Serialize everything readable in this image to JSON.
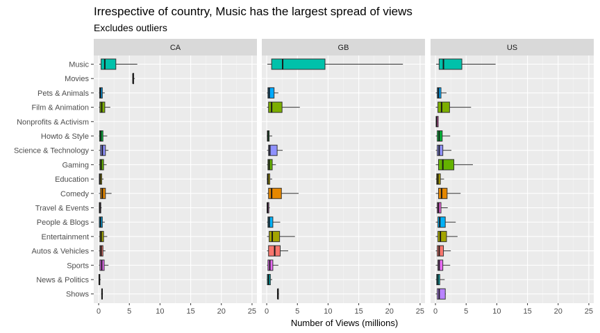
{
  "chart_data": {
    "type": "boxplot",
    "title": "Irrespective of country, Music has the largest spread of views",
    "subtitle": "Excludes outliers",
    "xlabel": "Number of Views (millions)",
    "ylabel": "",
    "xlim": [
      -0.8,
      25.8
    ],
    "x_ticks": [
      0,
      5,
      10,
      15,
      20,
      25
    ],
    "grid": true,
    "legend": "none",
    "categories": [
      "Music",
      "Movies",
      "Pets & Animals",
      "Film & Animation",
      "Nonprofits & Activism",
      "Howto & Style",
      "Science & Technology",
      "Gaming",
      "Education",
      "Comedy",
      "Travel & Events",
      "People & Blogs",
      "Entertainment",
      "Autos & Vehicles",
      "Sports",
      "News & Politics",
      "Shows"
    ],
    "colors": {
      "Music": "#00C1AA",
      "Movies": "#00BD5C",
      "Pets & Animals": "#00A9FF",
      "Film & Animation": "#7CAE00",
      "Nonprofits & Activism": "#FF61CC",
      "Howto & Style": "#00BA38",
      "Science & Technology": "#8F91FF",
      "Gaming": "#64B200",
      "Education": "#AEA200",
      "Comedy": "#E58700",
      "Travel & Events": "#F564E3",
      "People & Blogs": "#00B0F6",
      "Entertainment": "#A3A500",
      "Autos & Vehicles": "#F8766D",
      "Sports": "#E76BF3",
      "News & Politics": "#00BFC4",
      "Shows": "#B983FF"
    },
    "facets": [
      {
        "name": "CA",
        "boxes": [
          {
            "category": "Music",
            "min": 0.1,
            "q1": 0.4,
            "median": 1.0,
            "q3": 2.8,
            "max": 6.3
          },
          {
            "category": "Movies",
            "min": 5.6,
            "q1": 5.6,
            "median": 5.6,
            "q3": 5.6,
            "max": 5.9
          },
          {
            "category": "Pets & Animals",
            "min": 0.05,
            "q1": 0.15,
            "median": 0.3,
            "q3": 0.6,
            "max": 1.0
          },
          {
            "category": "Film & Animation",
            "min": 0.05,
            "q1": 0.2,
            "median": 0.5,
            "q3": 1.0,
            "max": 1.9
          },
          {
            "category": "Howto & Style",
            "min": 0.05,
            "q1": 0.15,
            "median": 0.35,
            "q3": 0.7,
            "max": 1.4
          },
          {
            "category": "Science & Technology",
            "min": 0.05,
            "q1": 0.3,
            "median": 0.6,
            "q3": 1.1,
            "max": 1.6
          },
          {
            "category": "Gaming",
            "min": 0.05,
            "q1": 0.2,
            "median": 0.4,
            "q3": 0.8,
            "max": 1.3
          },
          {
            "category": "Education",
            "min": 0.05,
            "q1": 0.1,
            "median": 0.25,
            "q3": 0.5,
            "max": 0.8
          },
          {
            "category": "Comedy",
            "min": 0.05,
            "q1": 0.3,
            "median": 0.6,
            "q3": 1.1,
            "max": 2.1
          },
          {
            "category": "Travel & Events",
            "min": 0.05,
            "q1": 0.1,
            "median": 0.2,
            "q3": 0.35,
            "max": 0.5
          },
          {
            "category": "People & Blogs",
            "min": 0.05,
            "q1": 0.1,
            "median": 0.3,
            "q3": 0.6,
            "max": 1.0
          },
          {
            "category": "Entertainment",
            "min": 0.05,
            "q1": 0.2,
            "median": 0.4,
            "q3": 0.8,
            "max": 1.4
          },
          {
            "category": "Autos & Vehicles",
            "min": 0.05,
            "q1": 0.2,
            "median": 0.4,
            "q3": 0.7,
            "max": 1.1
          },
          {
            "category": "Sports",
            "min": 0.05,
            "q1": 0.2,
            "median": 0.5,
            "q3": 0.9,
            "max": 1.6
          },
          {
            "category": "News & Politics",
            "min": 0.02,
            "q1": 0.05,
            "median": 0.1,
            "q3": 0.2,
            "max": 0.35
          },
          {
            "category": "Shows",
            "min": 0.4,
            "q1": 0.5,
            "median": 0.55,
            "q3": 0.6,
            "max": 0.7
          }
        ]
      },
      {
        "name": "GB",
        "boxes": [
          {
            "category": "Music",
            "min": 0.1,
            "q1": 0.8,
            "median": 2.6,
            "q3": 9.5,
            "max": 22.2
          },
          {
            "category": "Pets & Animals",
            "min": 0.05,
            "q1": 0.2,
            "median": 0.4,
            "q3": 1.2,
            "max": 1.9
          },
          {
            "category": "Film & Animation",
            "min": 0.05,
            "q1": 0.3,
            "median": 0.8,
            "q3": 2.5,
            "max": 5.4
          },
          {
            "category": "Howto & Style",
            "min": 0.02,
            "q1": 0.1,
            "median": 0.2,
            "q3": 0.4,
            "max": 0.9
          },
          {
            "category": "Science & Technology",
            "min": 0.05,
            "q1": 0.3,
            "median": 0.5,
            "q3": 1.7,
            "max": 2.6
          },
          {
            "category": "Gaming",
            "min": 0.05,
            "q1": 0.2,
            "median": 0.4,
            "q3": 0.9,
            "max": 1.5
          },
          {
            "category": "Education",
            "min": 0.02,
            "q1": 0.1,
            "median": 0.2,
            "q3": 0.5,
            "max": 0.9
          },
          {
            "category": "Comedy",
            "min": 0.05,
            "q1": 0.3,
            "median": 0.8,
            "q3": 2.4,
            "max": 5.2
          },
          {
            "category": "Travel & Events",
            "min": 0.02,
            "q1": 0.05,
            "median": 0.15,
            "q3": 0.35,
            "max": 0.5
          },
          {
            "category": "People & Blogs",
            "min": 0.05,
            "q1": 0.2,
            "median": 0.4,
            "q3": 1.0,
            "max": 2.2
          },
          {
            "category": "Entertainment",
            "min": 0.05,
            "q1": 0.4,
            "median": 0.9,
            "q3": 2.1,
            "max": 4.6
          },
          {
            "category": "Autos & Vehicles",
            "min": 0.05,
            "q1": 0.3,
            "median": 1.3,
            "q3": 2.2,
            "max": 3.5
          },
          {
            "category": "Sports",
            "min": 0.05,
            "q1": 0.2,
            "median": 0.5,
            "q3": 1.0,
            "max": 1.9
          },
          {
            "category": "News & Politics",
            "min": 0.02,
            "q1": 0.1,
            "median": 0.3,
            "q3": 0.6,
            "max": 0.9
          },
          {
            "category": "Shows",
            "min": 1.8,
            "q1": 1.8,
            "median": 1.8,
            "q3": 1.9,
            "max": 2.0
          }
        ]
      },
      {
        "name": "US",
        "boxes": [
          {
            "category": "Music",
            "min": 0.1,
            "q1": 0.6,
            "median": 1.3,
            "q3": 4.3,
            "max": 9.8
          },
          {
            "category": "Pets & Animals",
            "min": 0.05,
            "q1": 0.3,
            "median": 0.5,
            "q3": 0.9,
            "max": 1.8
          },
          {
            "category": "Film & Animation",
            "min": 0.05,
            "q1": 0.4,
            "median": 1.0,
            "q3": 2.3,
            "max": 5.8
          },
          {
            "category": "Nonprofits & Activism",
            "min": 0.05,
            "q1": 0.1,
            "median": 0.2,
            "q3": 0.45,
            "max": 0.5
          },
          {
            "category": "Howto & Style",
            "min": 0.05,
            "q1": 0.3,
            "median": 0.6,
            "q3": 1.1,
            "max": 2.4
          },
          {
            "category": "Science & Technology",
            "min": 0.05,
            "q1": 0.3,
            "median": 0.6,
            "q3": 1.2,
            "max": 2.6
          },
          {
            "category": "Gaming",
            "min": 0.05,
            "q1": 0.5,
            "median": 1.2,
            "q3": 3.0,
            "max": 6.1
          },
          {
            "category": "Education",
            "min": 0.05,
            "q1": 0.2,
            "median": 0.4,
            "q3": 0.8,
            "max": 1.4
          },
          {
            "category": "Comedy",
            "min": 0.05,
            "q1": 0.5,
            "median": 1.0,
            "q3": 1.9,
            "max": 4.1
          },
          {
            "category": "Travel & Events",
            "min": 0.05,
            "q1": 0.3,
            "median": 0.5,
            "q3": 0.9,
            "max": 2.0
          },
          {
            "category": "People & Blogs",
            "min": 0.05,
            "q1": 0.4,
            "median": 0.7,
            "q3": 1.6,
            "max": 3.3
          },
          {
            "category": "Entertainment",
            "min": 0.05,
            "q1": 0.4,
            "median": 0.8,
            "q3": 1.8,
            "max": 3.6
          },
          {
            "category": "Autos & Vehicles",
            "min": 0.05,
            "q1": 0.3,
            "median": 0.6,
            "q3": 1.3,
            "max": 2.5
          },
          {
            "category": "Sports",
            "min": 0.05,
            "q1": 0.4,
            "median": 0.6,
            "q3": 1.2,
            "max": 2.4
          },
          {
            "category": "News & Politics",
            "min": 0.05,
            "q1": 0.2,
            "median": 0.4,
            "q3": 0.7,
            "max": 1.5
          },
          {
            "category": "Shows",
            "min": 0.05,
            "q1": 0.3,
            "median": 0.6,
            "q3": 1.6,
            "max": 1.7
          }
        ]
      }
    ]
  }
}
